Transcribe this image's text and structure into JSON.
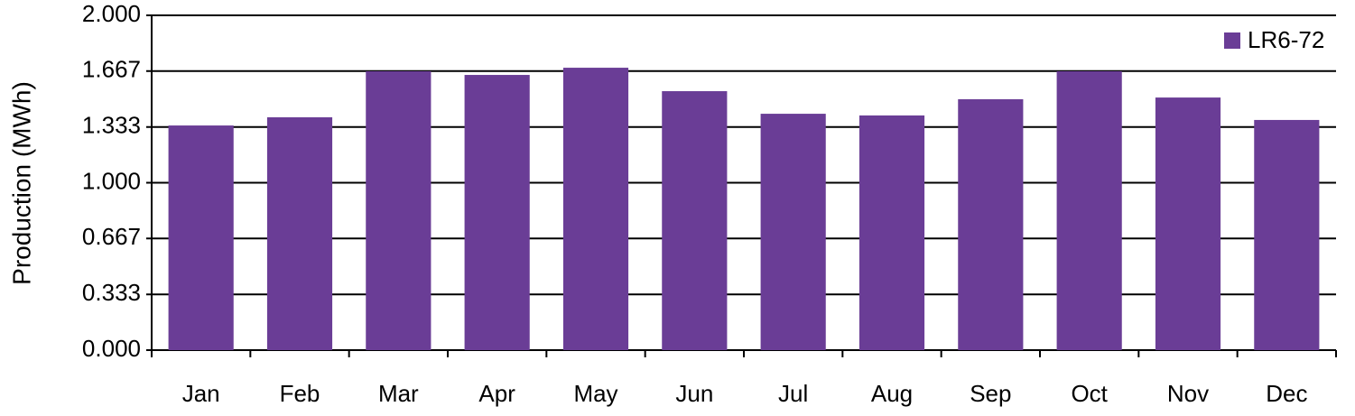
{
  "chart_data": {
    "type": "bar",
    "y_label": "Production (MWh)",
    "categories": [
      "Jan",
      "Feb",
      "Mar",
      "Apr",
      "May",
      "Jun",
      "Jul",
      "Aug",
      "Sep",
      "Oct",
      "Nov",
      "Dec"
    ],
    "series": [
      {
        "name": "LR6-72",
        "color": "#6a3d96",
        "values": [
          1.342,
          1.391,
          1.666,
          1.644,
          1.687,
          1.547,
          1.412,
          1.402,
          1.499,
          1.666,
          1.509,
          1.375
        ]
      }
    ],
    "ylim": [
      0,
      2
    ],
    "yticks": [
      {
        "value": 0,
        "label": "0.000"
      },
      0.333,
      0.667,
      {
        "value": 1,
        "label": "1.000"
      },
      1.333,
      1.667,
      {
        "value": 2,
        "label": "2.000"
      }
    ],
    "grid": true,
    "legend": "top-right"
  }
}
